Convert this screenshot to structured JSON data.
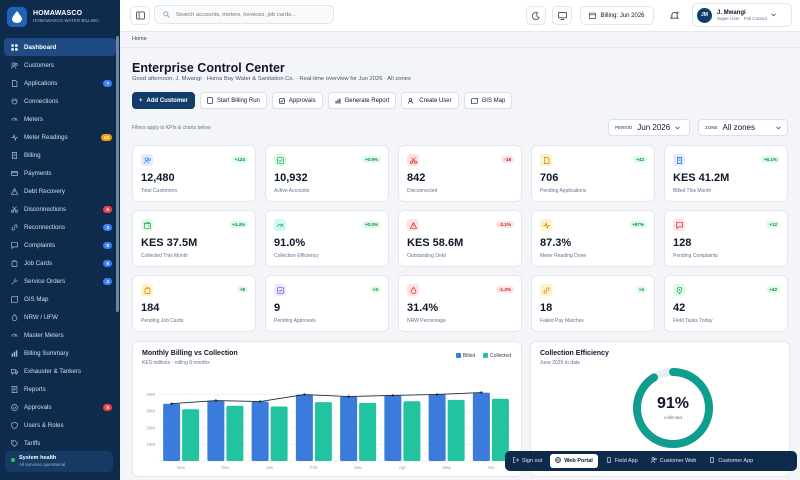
{
  "brand": {
    "name": "HOMAWASCO",
    "tagline": "HOMAWASCO WATER BILLING"
  },
  "sidebar": {
    "items": [
      {
        "label": "Dashboard",
        "icon": "grid-icon",
        "active": true
      },
      {
        "label": "Customers",
        "icon": "users-icon"
      },
      {
        "label": "Applications",
        "icon": "file-icon",
        "badge": "7",
        "badge_color": "#3b82f6"
      },
      {
        "label": "Connections",
        "icon": "plug-icon"
      },
      {
        "label": "Meters",
        "icon": "gauge-icon"
      },
      {
        "label": "Meter Readings",
        "icon": "activity-icon",
        "badge": "52",
        "badge_color": "#f59e0b"
      },
      {
        "label": "Billing",
        "icon": "receipt-icon"
      },
      {
        "label": "Payments",
        "icon": "card-icon"
      },
      {
        "label": "Debt Recovery",
        "icon": "alert-icon"
      },
      {
        "label": "Disconnections",
        "icon": "scissors-icon",
        "badge": "6",
        "badge_color": "#ef4444"
      },
      {
        "label": "Reconnections",
        "icon": "link-icon",
        "badge": "3",
        "badge_color": "#3b82f6"
      },
      {
        "label": "Complaints",
        "icon": "message-icon",
        "badge": "8",
        "badge_color": "#3b82f6"
      },
      {
        "label": "Job Cards",
        "icon": "clipboard-icon",
        "badge": "6",
        "badge_color": "#3b82f6"
      },
      {
        "label": "Service Orders",
        "icon": "tool-icon",
        "badge": "4",
        "badge_color": "#3b82f6"
      },
      {
        "label": "GIS Map",
        "icon": "map-icon"
      },
      {
        "label": "NRW / UFW",
        "icon": "droplet-icon"
      },
      {
        "label": "Master Meters",
        "icon": "gauge-icon"
      },
      {
        "label": "Billing Summary",
        "icon": "chart-icon"
      },
      {
        "label": "Exhauster & Tankers",
        "icon": "truck-icon"
      },
      {
        "label": "Reports",
        "icon": "report-icon"
      },
      {
        "label": "Approvals",
        "icon": "check-icon",
        "badge": "9",
        "badge_color": "#ef4444"
      },
      {
        "label": "Users & Roles",
        "icon": "user-shield-icon"
      },
      {
        "label": "Tariffs",
        "icon": "tag-icon"
      }
    ],
    "system": {
      "title": "System health",
      "status": "All services operational"
    }
  },
  "topbar": {
    "search_placeholder": "Search accounts, meters, invoices, job cards...",
    "billing_label": "Billing: Jun 2026",
    "user_initials": "JM",
    "user_name": "J. Mwangi",
    "user_role": "Super User · Full Control"
  },
  "breadcrumb": "Home",
  "page": {
    "title": "Enterprise Control Center",
    "subtitle": "Good afternoon, J. Mwangi · Homa Bay Water & Sanitation Co. · Real-time overview for Jun 2026 · All zones",
    "actions": [
      "Add Customer",
      "Start Billing Run",
      "Approvals",
      "Generate Report",
      "Create User",
      "GIS Map"
    ],
    "filters_note": "Filters apply to KPIs & charts below",
    "period_label": "PERIOD",
    "period_value": "Jun 2026",
    "zone_label": "ZONE",
    "zone_value": "All zones"
  },
  "kpis": [
    {
      "value": "12,480",
      "label": "Total Customers",
      "delta": "+124",
      "trend": "up",
      "icon": "users-icon",
      "color": "#3b82f6",
      "bg": "#e0edff"
    },
    {
      "value": "10,932",
      "label": "Active Accounts",
      "delta": "+0.9%",
      "trend": "up",
      "icon": "check-square-icon",
      "color": "#16a34a",
      "bg": "#dcfce7"
    },
    {
      "value": "842",
      "label": "Disconnected",
      "delta": "-18",
      "trend": "down",
      "icon": "scissors-icon",
      "color": "#dc2626",
      "bg": "#fee2e2"
    },
    {
      "value": "706",
      "label": "Pending Applications",
      "delta": "+42",
      "trend": "up",
      "icon": "file-icon",
      "color": "#d97706",
      "bg": "#fef3c7"
    },
    {
      "value": "KES 41.2M",
      "label": "Billed This Month",
      "delta": "+6.1%",
      "trend": "up",
      "icon": "receipt-icon",
      "color": "#2563eb",
      "bg": "#e0edff"
    },
    {
      "value": "KES 37.5M",
      "label": "Collected This Month",
      "delta": "+4.4%",
      "trend": "up",
      "icon": "wallet-icon",
      "color": "#16a34a",
      "bg": "#dcfce7"
    },
    {
      "value": "91.0%",
      "label": "Collection Efficiency",
      "delta": "+0.0%",
      "trend": "up",
      "icon": "gauge-icon",
      "color": "#0d9488",
      "bg": "#ccfbf1"
    },
    {
      "value": "KES 58.6M",
      "label": "Outstanding Debt",
      "delta": "-3.1%",
      "trend": "down",
      "icon": "alert-icon",
      "color": "#dc2626",
      "bg": "#fee2e2"
    },
    {
      "value": "87.3%",
      "label": "Meter Reading Done",
      "delta": "+87%",
      "trend": "up",
      "icon": "activity-icon",
      "color": "#d97706",
      "bg": "#fef3c7"
    },
    {
      "value": "128",
      "label": "Pending Complaints",
      "delta": "+12",
      "trend": "up",
      "icon": "message-icon",
      "color": "#dc2626",
      "bg": "#fee2e2"
    },
    {
      "value": "184",
      "label": "Pending Job Cards",
      "delta": "+8",
      "trend": "up",
      "icon": "clipboard-icon",
      "color": "#d97706",
      "bg": "#fef3c7"
    },
    {
      "value": "9",
      "label": "Pending Approvals",
      "delta": "+3",
      "trend": "up",
      "icon": "check-square-icon",
      "color": "#7c3aed",
      "bg": "#ede9fe"
    },
    {
      "value": "31.4%",
      "label": "NRW Percentage",
      "delta": "-1.2%",
      "trend": "down",
      "icon": "droplet-icon",
      "color": "#dc2626",
      "bg": "#fee2e2"
    },
    {
      "value": "18",
      "label": "Failed Pay Matches",
      "delta": "+4",
      "trend": "up",
      "icon": "link-icon",
      "color": "#d97706",
      "bg": "#fef3c7"
    },
    {
      "value": "42",
      "label": "Field Tasks Today",
      "delta": "+42",
      "trend": "up",
      "icon": "pin-icon",
      "color": "#16a34a",
      "bg": "#dcfce7"
    }
  ],
  "billing_chart": {
    "title": "Monthly Billing vs Collection",
    "subtitle": "KES millions · rolling 8 months"
  },
  "chart_data": {
    "type": "bar",
    "categories": [
      "Nov",
      "Dec",
      "Jan",
      "Feb",
      "Mar",
      "Apr",
      "May",
      "Jun"
    ],
    "series": [
      {
        "name": "Billed",
        "values": [
          34.5,
          36.4,
          35.8,
          40.0,
          38.8,
          39.5,
          40.1,
          41.2
        ],
        "color": "#3b7bdc"
      },
      {
        "name": "Collected",
        "values": [
          31.2,
          33.3,
          32.8,
          35.5,
          35.0,
          36.0,
          36.8,
          37.5
        ],
        "color": "#22c3a0"
      }
    ],
    "yticks": [
      "10M",
      "20M",
      "30M",
      "40M"
    ],
    "ylim": [
      0,
      50
    ],
    "legend": "top-right",
    "grid": true
  },
  "efficiency": {
    "title": "Collection Efficiency",
    "subtitle": "June 2026 to date",
    "value": "91%",
    "fraction": 0.91,
    "label": "collected",
    "color": "#0f9e8e"
  },
  "footer": {
    "items": [
      {
        "label": "Sign out",
        "icon": "logout-icon"
      },
      {
        "label": "Web Portal",
        "icon": "globe-icon",
        "active": true
      },
      {
        "label": "Field App",
        "icon": "phone-icon"
      },
      {
        "label": "Customer Web",
        "icon": "users-icon"
      },
      {
        "label": "Customer App",
        "icon": "phone-icon"
      }
    ]
  }
}
